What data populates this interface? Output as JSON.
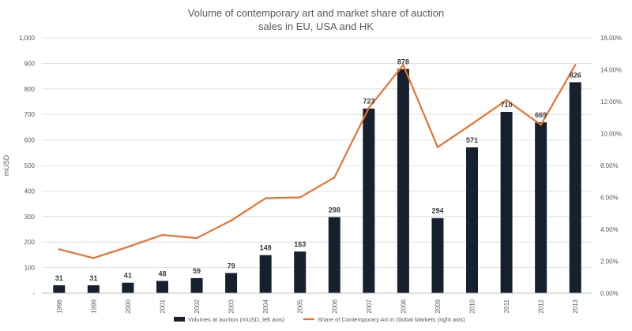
{
  "chart_data": {
    "type": "bar",
    "title_line1": "Volume of contemporary art and market share of auction",
    "title_line2": "sales in EU, USA and HK",
    "ylabel": "mUSD",
    "ylabel_right": "",
    "categories": [
      "1998",
      "1999",
      "2000",
      "2001",
      "2002",
      "2003",
      "2004",
      "2005",
      "2006",
      "2007",
      "2008",
      "2009",
      "2010",
      "2011",
      "2012",
      "2013"
    ],
    "ylim": [
      0,
      1000
    ],
    "y_ticks": [
      0,
      100,
      200,
      300,
      400,
      500,
      600,
      700,
      800,
      900,
      1000
    ],
    "y_tick_labels": [
      "-",
      "100",
      "200",
      "300",
      "400",
      "500",
      "600",
      "700",
      "800",
      "900",
      "1,000"
    ],
    "y2lim": [
      0,
      16
    ],
    "y2_ticks": [
      0,
      2,
      4,
      6,
      8,
      10,
      12,
      14,
      16
    ],
    "y2_tick_labels": [
      "0.00%",
      "2.00%",
      "4.00%",
      "6.00%",
      "8.00%",
      "10.00%",
      "12.00%",
      "14.00%",
      "16.00%"
    ],
    "grid": true,
    "legend_position": "bottom",
    "series": [
      {
        "name": "Volumes at auction (mUSD, left axis)",
        "type": "bar",
        "axis": "left",
        "color": "#16202f",
        "values": [
          31,
          31,
          41,
          48,
          59,
          79,
          149,
          163,
          298,
          723,
          878,
          294,
          571,
          710,
          669,
          826
        ],
        "data_labels": [
          "31",
          "31",
          "41",
          "48",
          "59",
          "79",
          "149",
          "163",
          "298",
          "723",
          "878",
          "294",
          "571",
          "710",
          "669",
          "826"
        ]
      },
      {
        "name": "Share of Contemporary Art in Global Markets (right axis)",
        "type": "line",
        "axis": "right",
        "color": "#e9722e",
        "values": [
          2.75,
          2.2,
          2.9,
          3.65,
          3.45,
          4.55,
          5.95,
          6.0,
          7.25,
          11.6,
          14.3,
          9.15,
          10.6,
          12.1,
          10.55,
          14.3
        ]
      }
    ]
  }
}
